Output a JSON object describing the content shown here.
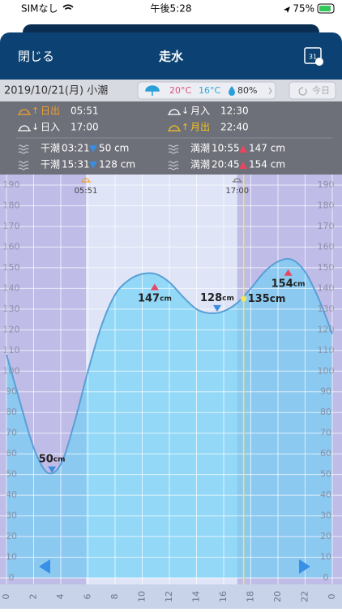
{
  "status_bar": {
    "carrier": "SIMなし",
    "time": "午後5:28",
    "battery": "75%"
  },
  "header": {
    "close": "閉じる",
    "title": "走水",
    "calendar": "31"
  },
  "info": {
    "date": "2019/10/21(月) 小潮",
    "weather": {
      "high": "20°C",
      "low": "16°C",
      "rain": "80%"
    },
    "today": "今日",
    "sun_moon": [
      {
        "label": "日出",
        "time": "05:51"
      },
      {
        "label": "月入",
        "time": "12:30"
      },
      {
        "label": "日入",
        "time": "17:00"
      },
      {
        "label": "月出",
        "time": "22:40"
      }
    ],
    "tides": [
      {
        "label": "干潮",
        "time": "03:21",
        "height": "50 cm"
      },
      {
        "label": "満潮",
        "time": "10:55",
        "height": "147 cm"
      },
      {
        "label": "干潮",
        "time": "15:31",
        "height": "128 cm"
      },
      {
        "label": "満潮",
        "time": "20:45",
        "height": "154 cm"
      }
    ]
  },
  "chart_data": {
    "type": "area",
    "x": [
      0,
      1,
      2,
      3,
      4,
      5,
      6,
      7,
      8,
      9,
      10,
      11,
      12,
      13,
      14,
      15,
      16,
      17,
      18,
      19,
      20,
      21,
      22,
      23,
      24
    ],
    "values": [
      108,
      85,
      63,
      51,
      55,
      75,
      100,
      122,
      137,
      144,
      147,
      147,
      143,
      136,
      130,
      128,
      129,
      133,
      140,
      148,
      153,
      154,
      148,
      135,
      118
    ],
    "color": "#86d6f7",
    "xlim": [
      0,
      24
    ],
    "xticks": [
      0,
      2,
      4,
      6,
      8,
      10,
      12,
      14,
      16,
      18,
      20,
      22,
      {
        "value": 24,
        "label": "0"
      }
    ],
    "ylim": [
      0,
      190
    ],
    "yticks": [
      0,
      10,
      20,
      30,
      40,
      50,
      60,
      70,
      80,
      90,
      100,
      110,
      120,
      130,
      140,
      150,
      160,
      170,
      180,
      190
    ],
    "grid": true,
    "unit": "cm",
    "sunrise": {
      "x": 5.85,
      "label": "05:51"
    },
    "sunset": {
      "x": 17,
      "label": "17:00"
    },
    "extremes": [
      {
        "x": 3.35,
        "value": 50,
        "kind": "low"
      },
      {
        "x": 10.92,
        "value": 147,
        "kind": "high"
      },
      {
        "x": 15.52,
        "value": 128,
        "kind": "low"
      },
      {
        "x": 20.75,
        "value": 154,
        "kind": "high"
      }
    ],
    "now": {
      "x": 17.47,
      "value": 135
    }
  }
}
